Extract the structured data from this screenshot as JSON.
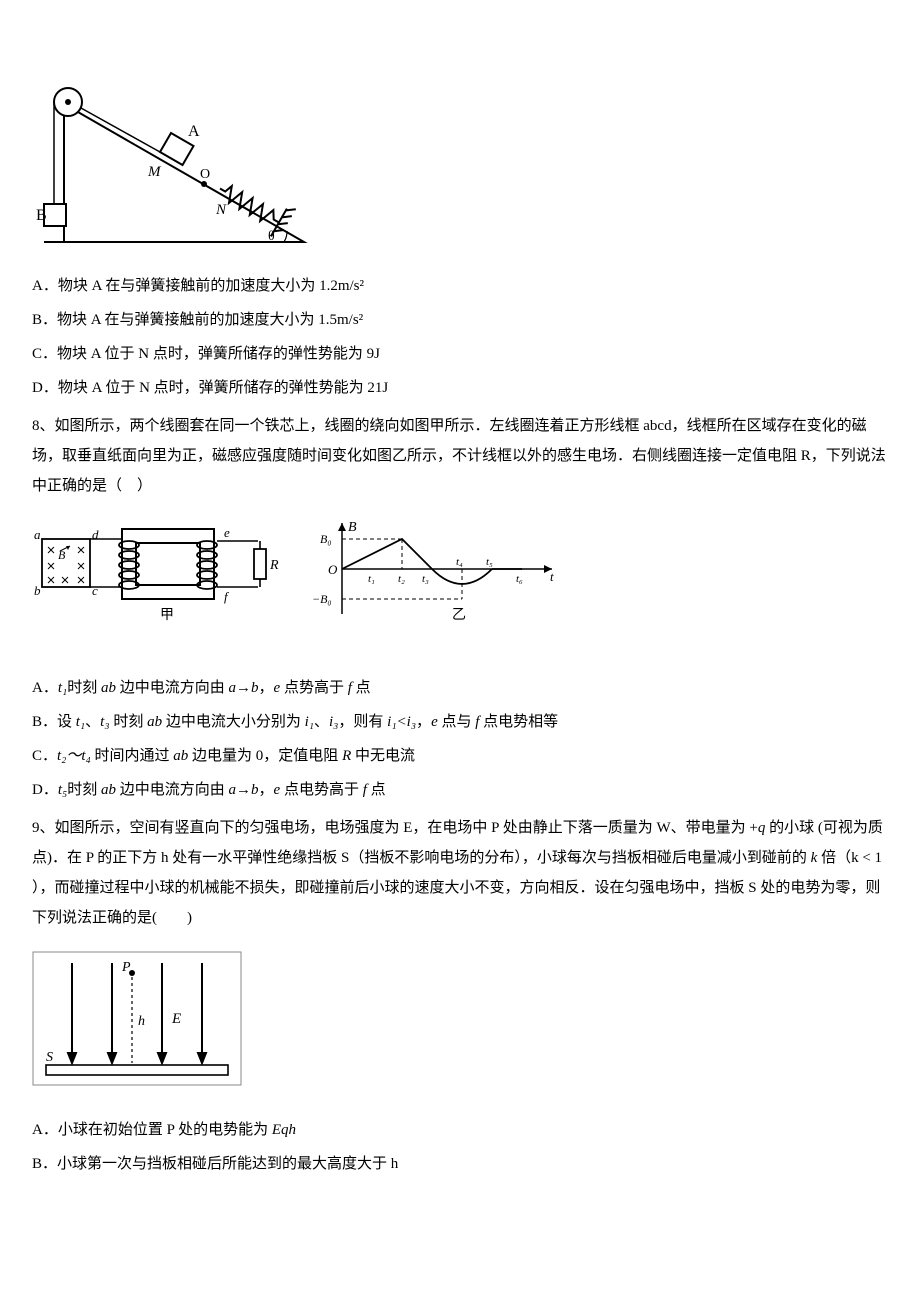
{
  "q7": {
    "figure": {
      "label_A": "A",
      "label_B": "B",
      "label_M": "M",
      "label_O": "O",
      "label_N": "N",
      "label_theta": "θ",
      "stroke": "#000000",
      "incline_fill": "#ffffff",
      "block_fill": "#ffffff",
      "spring_coils": 6
    },
    "options": {
      "A": "A．物块 A 在与弹簧接触前的加速度大小为 1.2m/s²",
      "B": "B．物块 A 在与弹簧接触前的加速度大小为 1.5m/s²",
      "C": "C．物块 A 位于 N 点时，弹簧所储存的弹性势能为 9J",
      "D": "D．物块 A 位于 N 点时，弹簧所储存的弹性势能为 21J"
    }
  },
  "q8": {
    "stem": "8、如图所示，两个线圈套在同一个铁芯上，线圈的绕向如图甲所示．左线圈连着正方形线框 abcd，线框所在区域存在变化的磁场，取垂直纸面向里为正，磁感应强度随时间变化如图乙所示，不计线框以外的感生电场．右侧线圈连接一定值电阻 R，下列说法中正确的是（　）",
    "figure": {
      "left": {
        "a": "a",
        "b": "b",
        "c": "c",
        "d": "d",
        "e": "e",
        "f": "f",
        "B": "B",
        "R": "R",
        "caption": "甲"
      },
      "right": {
        "caption": "乙",
        "ylabel": "B",
        "xlabel": "t",
        "B0p": "B₀",
        "B0n": "−B₀",
        "O": "O",
        "t_labels": [
          "t₁",
          "t₂",
          "t₃",
          "t₄",
          "t₅",
          "t₆"
        ],
        "stroke": "#000000",
        "dash": "4,3"
      },
      "stroke": "#000000"
    },
    "options": {
      "A_parts": [
        "A．",
        "t₁",
        "时刻 ",
        "ab",
        " 边中电流方向由 ",
        "a→b",
        "，",
        "e",
        " 点势高于 ",
        "f",
        " 点"
      ],
      "B_parts": [
        "B．设 ",
        "t₁",
        "、",
        "t₃",
        " 时刻 ",
        "ab",
        " 边中电流大小分别为 ",
        "i₁",
        "、",
        "i₃",
        "，则有 ",
        "i₁<i₃",
        "，",
        "e",
        " 点与 ",
        "f",
        " 点电势相等"
      ],
      "C_parts": [
        "C．",
        "t₂～t₄",
        " 时间内通过 ",
        "ab",
        " 边电量为 0，定值电阻 ",
        "R",
        " 中无电流"
      ],
      "D_parts": [
        "D．",
        "t₅",
        "时刻 ",
        "ab",
        " 边中电流方向由 ",
        "a→b",
        "，",
        "e",
        " 点电势高于 ",
        "f",
        " 点"
      ]
    }
  },
  "q9": {
    "stem_parts": [
      "9、如图所示，空间有竖直向下的匀强电场，电场强度为 E，在电场中 P 处由静止下落一质量为 W、带电量为 +",
      "q",
      " 的小球 (可视为质点)．在 P 的正下方 h 处有一水平弹性绝缘挡板 S（挡板不影响电场的分布），小球每次与挡板相碰后电量减小到碰前的 ",
      "k",
      " 倍（",
      "k < 1",
      " ），而碰撞过程中小球的机械能不损失，即碰撞前后小球的速度大小不变，方向相反．设在匀强电场中，挡板 S 处的电势为零，则下列说法正确的是(　　)"
    ],
    "figure": {
      "P": "P",
      "E": "E",
      "h": "h",
      "S": "S",
      "stroke": "#000000",
      "arrow_count": 4
    },
    "options": {
      "A_parts": [
        "A．小球在初始位置 P 处的电势能为 ",
        "Eqh"
      ],
      "B_parts": [
        "B．小球第一次与挡板相碰后所能达到的最大高度大于 h"
      ]
    }
  }
}
